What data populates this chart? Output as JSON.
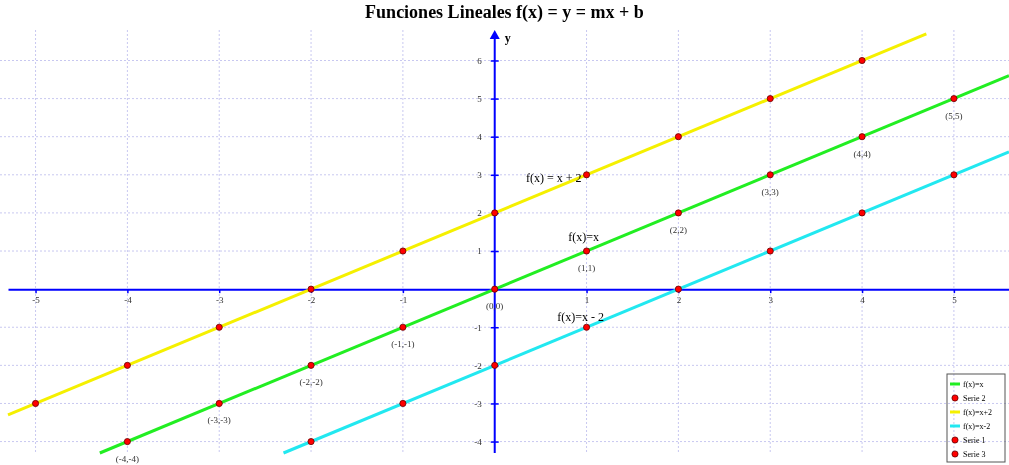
{
  "chart_data": {
    "type": "line",
    "title": "Funciones Lineales  f(x) = y = mx + b",
    "ylabel": "y",
    "xlim": [
      -5.3,
      5.6
    ],
    "ylim": [
      -4.3,
      6.8
    ],
    "xticks": [
      -5,
      -4,
      -3,
      -2,
      -1,
      1,
      2,
      3,
      4,
      5
    ],
    "yticks": [
      -4,
      -3,
      -2,
      -1,
      1,
      2,
      3,
      4,
      5,
      6
    ],
    "grid": true,
    "legend": "bottom right",
    "series": [
      {
        "name": "f(x)=x",
        "color": "#22ee22",
        "x": [
          -4.3,
          5.6
        ],
        "values": [
          -4.3,
          5.6
        ]
      },
      {
        "name": "Serie 2",
        "type": "scatter",
        "color": "#ff0000",
        "x": [
          -4,
          -3,
          -2,
          -1,
          0,
          1,
          2,
          3,
          4,
          5
        ],
        "values": [
          -4,
          -3,
          -2,
          -1,
          0,
          1,
          2,
          3,
          4,
          5
        ],
        "marker": "circle"
      },
      {
        "name": "f(x)=x+2",
        "color": "#f5f000",
        "x": [
          -5.3,
          4.7
        ],
        "values": [
          -3.3,
          6.7
        ]
      },
      {
        "name": "f(x)=x-2",
        "color": "#22e8f0",
        "x": [
          -2.3,
          5.6
        ],
        "values": [
          -4.3,
          3.6
        ]
      },
      {
        "name": "Serie 1",
        "type": "scatter",
        "color": "#ff0000",
        "x": [
          -5,
          -4,
          -3,
          -2,
          -1,
          0,
          1,
          2,
          3,
          4
        ],
        "values": [
          -3,
          -2,
          -1,
          0,
          1,
          2,
          3,
          4,
          5,
          6
        ],
        "marker": "circle"
      },
      {
        "name": "Serie 3",
        "type": "scatter",
        "color": "#ff0000",
        "x": [
          -2,
          -1,
          0,
          1,
          2,
          3,
          4,
          5
        ],
        "values": [
          -4,
          -3,
          -2,
          -1,
          0,
          1,
          2,
          3
        ],
        "marker": "circle"
      }
    ],
    "annotations": [
      {
        "text": "f(x) = x + 2",
        "x": 0.34,
        "y": 2.34
      },
      {
        "text": "f(x)=x",
        "x": 0.8,
        "y": 0.8
      },
      {
        "text": "f(x)=x - 2",
        "x": 0.68,
        "y": -1.32
      },
      {
        "text": "(-4,-4)",
        "x": -4,
        "y": -4
      },
      {
        "text": "(-3,-3)",
        "x": -3,
        "y": -3
      },
      {
        "text": "(-2,-2)",
        "x": -2,
        "y": -2
      },
      {
        "text": "(-1,-1)",
        "x": -1,
        "y": -1
      },
      {
        "text": "(0,0)",
        "x": 0,
        "y": 0
      },
      {
        "text": "(1,1)",
        "x": 1,
        "y": 1
      },
      {
        "text": "(2,2)",
        "x": 2,
        "y": 2
      },
      {
        "text": "(3,3)",
        "x": 3,
        "y": 3
      },
      {
        "text": "(4,4)",
        "x": 4,
        "y": 4
      },
      {
        "text": "(5,5)",
        "x": 5,
        "y": 5
      }
    ]
  }
}
